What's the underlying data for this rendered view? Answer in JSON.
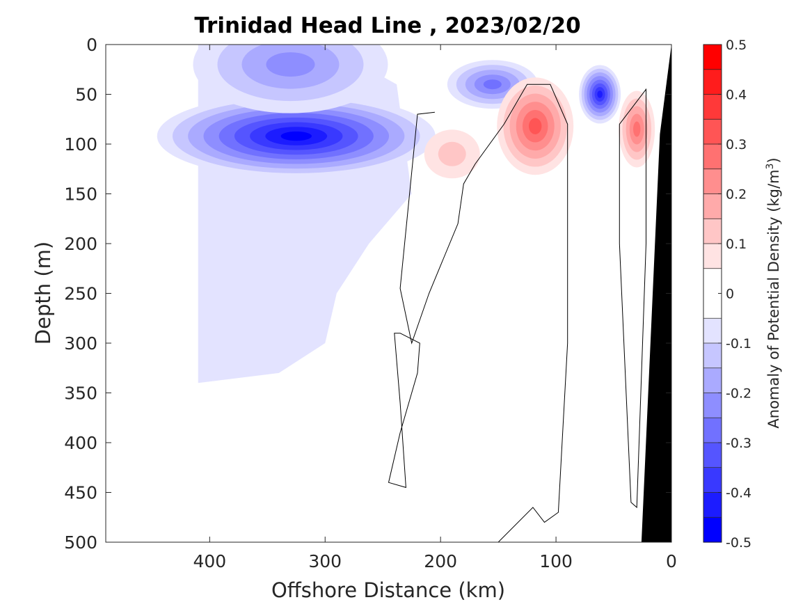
{
  "chart_data": {
    "type": "heatmap",
    "subtype": "filled-contour-section",
    "title": "Trinidad Head Line , 2023/02/20",
    "xlabel": "Offshore Distance (km)",
    "ylabel": "Depth (m)",
    "xlim": [
      490,
      0
    ],
    "ylim": [
      500,
      0
    ],
    "x_reversed": true,
    "y_reversed": true,
    "xticks": [
      400,
      300,
      200,
      100,
      0
    ],
    "yticks": [
      0,
      50,
      100,
      150,
      200,
      250,
      300,
      350,
      400,
      450,
      500
    ],
    "colorbar": {
      "label_prefix": "Anomaly of Potential Density (kg/m",
      "label_sup": "3",
      "label_suffix": ")",
      "range": [
        -0.5,
        0.5
      ],
      "ticks": [
        -0.5,
        -0.4,
        -0.3,
        -0.2,
        -0.1,
        0,
        0.1,
        0.2,
        0.3,
        0.4,
        0.5
      ],
      "levels": [
        -0.5,
        -0.45,
        -0.4,
        -0.35,
        -0.3,
        -0.25,
        -0.2,
        -0.15,
        -0.1,
        -0.05,
        0.05,
        0.1,
        0.15,
        0.2,
        0.25,
        0.3,
        0.35,
        0.4,
        0.45,
        0.5
      ],
      "colors": [
        "#0000ff",
        "#1c1cff",
        "#3939ff",
        "#5555ff",
        "#7171ff",
        "#8e8eff",
        "#aaaaff",
        "#c6c6ff",
        "#e3e3ff",
        "#ffffff",
        "#ffe3e3",
        "#ffc6c6",
        "#ffaaaa",
        "#ff8e8e",
        "#ff7171",
        "#ff5555",
        "#ff3939",
        "#ff1c1c",
        "#ff0000"
      ]
    },
    "data_extent_km": [
      410,
      20
    ],
    "bathymetry_color": "#000000",
    "features": [
      {
        "name": "negative-anomaly-core-offshore",
        "center_km": 325,
        "center_depth_m": 92,
        "peak": -0.45
      },
      {
        "name": "negative-anomaly-near-surface-offshore",
        "center_km": 330,
        "center_depth_m": 20,
        "peak": -0.2
      },
      {
        "name": "negative-anomaly-shelf-break",
        "center_km": 155,
        "center_depth_m": 40,
        "peak": -0.25
      },
      {
        "name": "negative-anomaly-inshore",
        "center_km": 62,
        "center_depth_m": 50,
        "peak": -0.4
      },
      {
        "name": "positive-anomaly-core",
        "center_km": 118,
        "center_depth_m": 82,
        "peak": 0.3
      },
      {
        "name": "positive-anomaly-coastal",
        "center_km": 30,
        "center_depth_m": 85,
        "peak": 0.25
      },
      {
        "name": "positive-anomaly-broad",
        "center_km": 190,
        "center_depth_m": 110,
        "peak": 0.1
      }
    ]
  }
}
